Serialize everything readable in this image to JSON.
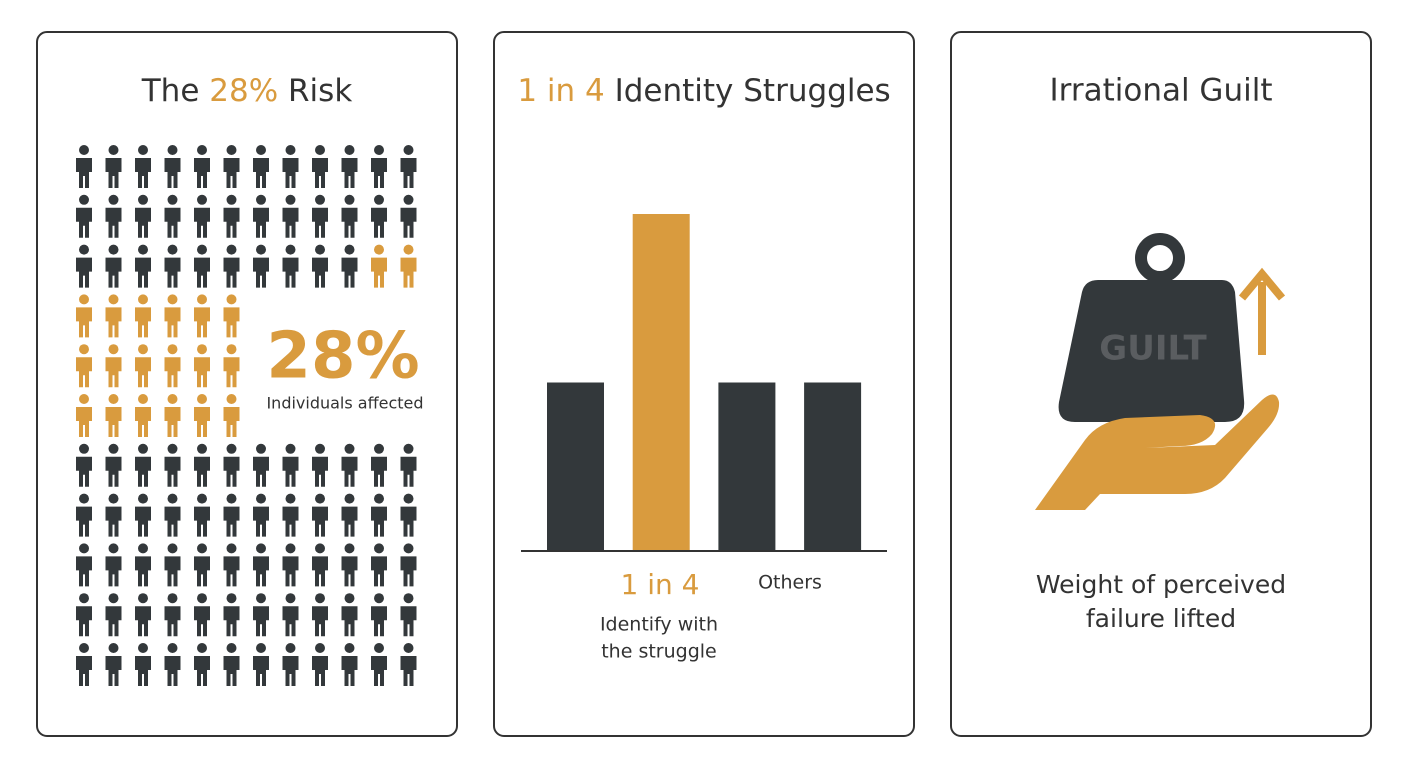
{
  "panels": [
    {
      "title": [
        "The ",
        "28%",
        " Risk"
      ],
      "stat": "28%",
      "stat_label": "Individuals affected"
    },
    {
      "title": [
        "1 in 4",
        " Identity Struggles"
      ],
      "chart": {
        "type": "bar",
        "values": [
          1,
          2,
          1,
          1
        ],
        "colors": [
          "#33383b",
          "#d99b3e",
          "#33383b",
          "#33383b"
        ]
      },
      "highlight": "1 in 4",
      "highlight_caption": [
        "Identify with",
        "the struggle"
      ],
      "others": "Others"
    },
    {
      "title": "Irrational Guilt",
      "weight_label": "GUILT",
      "caption": [
        "Weight of perceived",
        "failure lifted"
      ]
    }
  ]
}
